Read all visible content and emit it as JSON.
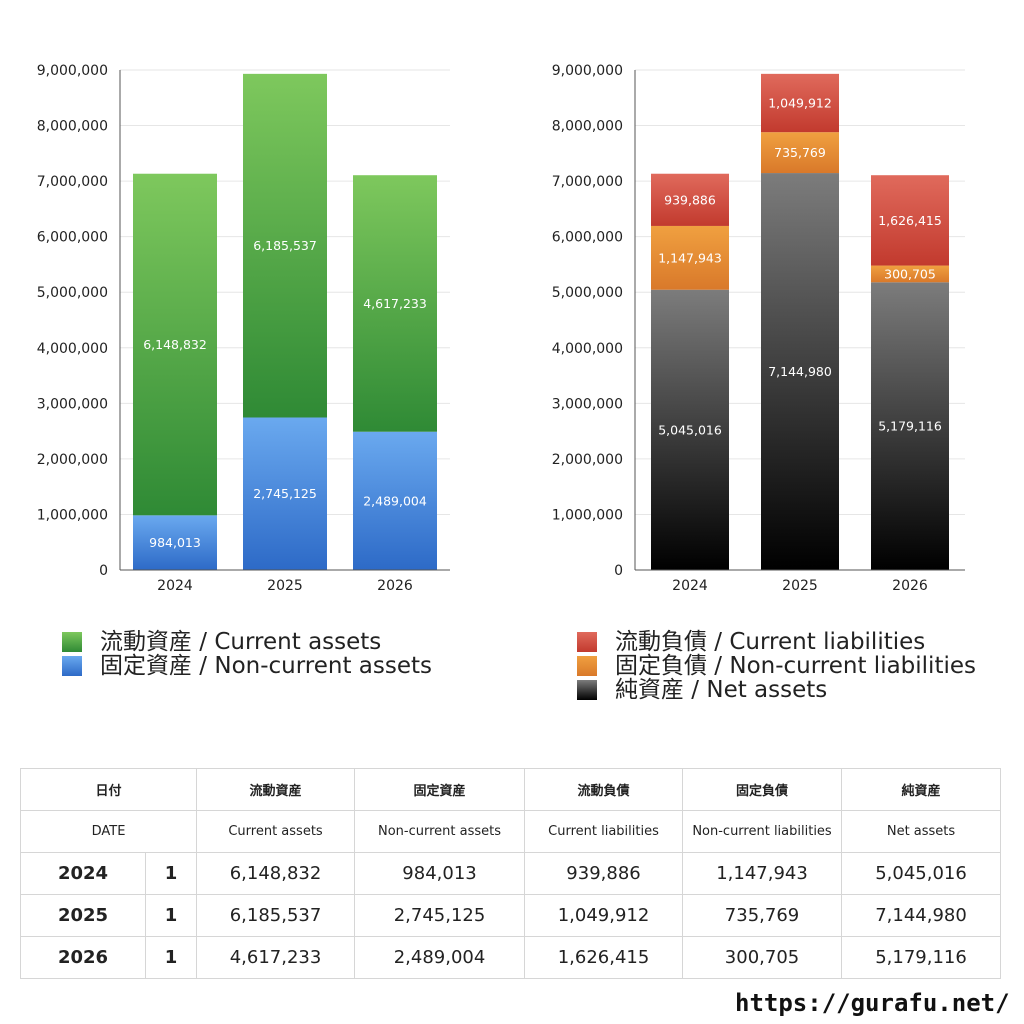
{
  "chart_data": [
    {
      "type": "bar",
      "stacked": true,
      "categories": [
        "2024",
        "2025",
        "2026"
      ],
      "ylim": [
        0,
        9000000
      ],
      "y_ticks": [
        "0",
        "1,000,000",
        "2,000,000",
        "3,000,000",
        "4,000,000",
        "5,000,000",
        "6,000,000",
        "7,000,000",
        "8,000,000",
        "9,000,000"
      ],
      "grid": true,
      "series": [
        {
          "name": "固定資産 / Non-current assets",
          "values": [
            984013,
            2745125,
            2489004
          ],
          "labels": [
            "984,013",
            "2,745,125",
            "2,489,004"
          ],
          "color_top": "#6aa9ef",
          "color_bottom": "#2d6ac7"
        },
        {
          "name": "流動資産 / Current assets",
          "values": [
            6148832,
            6185537,
            4617233
          ],
          "labels": [
            "6,148,832",
            "6,185,537",
            "4,617,233"
          ],
          "color_top": "#7ec85d",
          "color_bottom": "#2f8a35"
        }
      ],
      "legend": [
        {
          "label": "流動資産 / Current assets",
          "color": "#4fa447"
        },
        {
          "label": "固定資産 / Non-current assets",
          "color": "#3d7fd9"
        }
      ]
    },
    {
      "type": "bar",
      "stacked": true,
      "categories": [
        "2024",
        "2025",
        "2026"
      ],
      "ylim": [
        0,
        9000000
      ],
      "y_ticks": [
        "0",
        "1,000,000",
        "2,000,000",
        "3,000,000",
        "4,000,000",
        "5,000,000",
        "6,000,000",
        "7,000,000",
        "8,000,000",
        "9,000,000"
      ],
      "grid": true,
      "series": [
        {
          "name": "純資産 / Net assets",
          "values": [
            5045016,
            7144980,
            5179116
          ],
          "labels": [
            "5,045,016",
            "7,144,980",
            "5,179,116"
          ],
          "color_top": "#7c7c7c",
          "color_bottom": "#000000"
        },
        {
          "name": "固定負債 / Non-current liabilities",
          "values": [
            1147943,
            735769,
            300705
          ],
          "labels": [
            "1,147,943",
            "735,769",
            "300,705"
          ],
          "color_top": "#f0a040",
          "color_bottom": "#d9792a"
        },
        {
          "name": "流動負債 / Current liabilities",
          "values": [
            939886,
            1049912,
            1626415
          ],
          "labels": [
            "939,886",
            "1,049,912",
            "1,626,415"
          ],
          "color_top": "#e06a5c",
          "color_bottom": "#c23a2e"
        }
      ],
      "legend": [
        {
          "label": "流動負債 / Current liabilities",
          "color": "#d04a3d"
        },
        {
          "label": "固定負債 / Non-current liabilities",
          "color": "#e8892f"
        },
        {
          "label": "純資産 / Net assets",
          "color": "#222222"
        }
      ]
    }
  ],
  "table": {
    "header_jp": [
      "日付",
      "流動資産",
      "固定資産",
      "流動負債",
      "固定負債",
      "純資産"
    ],
    "header_en": [
      "DATE",
      "Current assets",
      "Non-current assets",
      "Current liabilities",
      "Non-current liabilities",
      "Net assets"
    ],
    "rows": [
      {
        "year": "2024",
        "month": "1",
        "cells": [
          "6,148,832",
          "984,013",
          "939,886",
          "1,147,943",
          "5,045,016"
        ]
      },
      {
        "year": "2025",
        "month": "1",
        "cells": [
          "6,185,537",
          "2,745,125",
          "1,049,912",
          "735,769",
          "7,144,980"
        ]
      },
      {
        "year": "2026",
        "month": "1",
        "cells": [
          "4,617,233",
          "2,489,004",
          "1,626,415",
          "300,705",
          "5,179,116"
        ]
      }
    ]
  },
  "site_url": "https://gurafu.net/"
}
